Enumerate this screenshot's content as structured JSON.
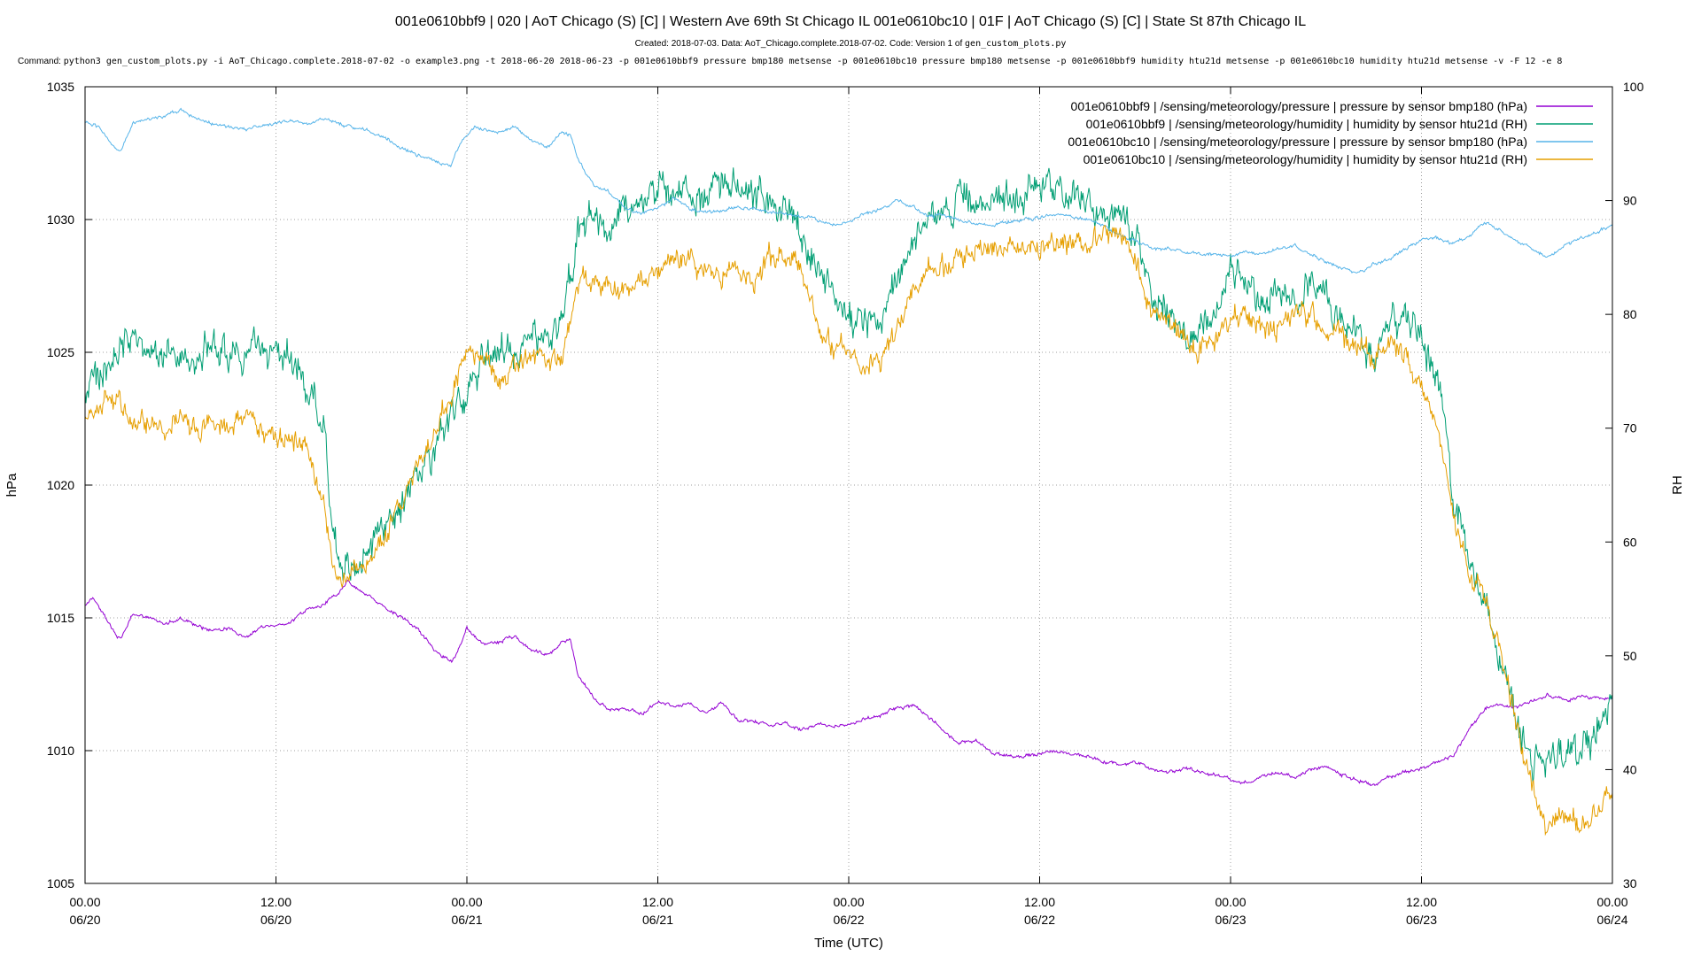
{
  "header": {
    "title": "001e0610bbf9 | 020 | AoT Chicago (S) [C] | Western Ave 69th St Chicago IL 001e0610bc10 | 01F | AoT Chicago (S) [C] | State St 87th Chicago IL",
    "subtitle_prefix": "Created: 2018-07-03. Data: AoT_Chicago.complete.2018-07-02. Code: Version 1 of",
    "subtitle_code": "gen_custom_plots.py",
    "command_label": "Command:",
    "command_text": "python3 gen_custom_plots.py -i AoT_Chicago.complete.2018-07-02 -o example3.png -t 2018-06-20 2018-06-23 -p 001e0610bbf9 pressure bmp180 metsense -p 001e0610bc10 pressure bmp180 metsense -p 001e0610bbf9 humidity htu21d metsense -p 001e0610bc10 humidity htu21d metsense -v -F 12 -e 8"
  },
  "chart_data": {
    "type": "line",
    "xlabel": "Time (UTC)",
    "ylabel": "hPa",
    "y2label": "RH",
    "x_unit": "hours since 06/20 00:00",
    "x_range": [
      0,
      96
    ],
    "x_ticks": [
      {
        "x": 0,
        "time": "00.00",
        "date": "06/20"
      },
      {
        "x": 12,
        "time": "12.00",
        "date": "06/20"
      },
      {
        "x": 24,
        "time": "00.00",
        "date": "06/21"
      },
      {
        "x": 36,
        "time": "12.00",
        "date": "06/21"
      },
      {
        "x": 48,
        "time": "00.00",
        "date": "06/22"
      },
      {
        "x": 60,
        "time": "12.00",
        "date": "06/22"
      },
      {
        "x": 72,
        "time": "00.00",
        "date": "06/23"
      },
      {
        "x": 84,
        "time": "12.00",
        "date": "06/23"
      },
      {
        "x": 96,
        "time": "00.00",
        "date": "06/24"
      }
    ],
    "ylim": [
      1005,
      1035
    ],
    "yticks": [
      "1005",
      "1010",
      "1015",
      "1020",
      "1025",
      "1030",
      "1035"
    ],
    "y2lim": [
      30,
      100
    ],
    "y2ticks": [
      "30",
      "40",
      "50",
      "60",
      "70",
      "80",
      "90",
      "100"
    ],
    "grid": true,
    "legend_position": "top-right",
    "series": [
      {
        "name": "001e0610bbf9 | /sensing/meteorology/pressure | pressure by sensor bmp180 (hPa)",
        "color": "#9400d3",
        "axis": "left",
        "noise": 0.08,
        "x": [
          0,
          0.5,
          1,
          2,
          2.2,
          3,
          4,
          5,
          6,
          7,
          8,
          9,
          10,
          11,
          12,
          13,
          14,
          15,
          16,
          16.5,
          17,
          18,
          19,
          20,
          21,
          22,
          23,
          23.5,
          24,
          24.5,
          25,
          26,
          27,
          28,
          29,
          30,
          30.5,
          31,
          32,
          33,
          34,
          35,
          36,
          37,
          38,
          39,
          40,
          41,
          42,
          43,
          44,
          45,
          46,
          47,
          48,
          49,
          50,
          51,
          52,
          53,
          54,
          55,
          56,
          57,
          58,
          59,
          60,
          61,
          62,
          63,
          64,
          65,
          66,
          67,
          68,
          69,
          70,
          71,
          72,
          73,
          74,
          75,
          76,
          77,
          78,
          79,
          80,
          81,
          82,
          83,
          84,
          85,
          86,
          87,
          88,
          89,
          90,
          91,
          92,
          93,
          94,
          95,
          96
        ],
        "y": [
          1015.5,
          1015.8,
          1015.3,
          1014.3,
          1014.2,
          1015.1,
          1015,
          1014.8,
          1015,
          1014.7,
          1014.5,
          1014.6,
          1014.2,
          1014.6,
          1014.7,
          1014.9,
          1015.3,
          1015.5,
          1016,
          1016.4,
          1016.1,
          1015.8,
          1015.3,
          1015,
          1014.5,
          1013.8,
          1013.3,
          1013.8,
          1014.6,
          1014.3,
          1014,
          1014.1,
          1014.3,
          1013.8,
          1013.6,
          1014.1,
          1014.2,
          1012.8,
          1012,
          1011.5,
          1011.6,
          1011.4,
          1011.8,
          1011.7,
          1011.8,
          1011.4,
          1011.8,
          1011.2,
          1011.1,
          1011,
          1011,
          1010.8,
          1011,
          1010.9,
          1011,
          1011.2,
          1011.3,
          1011.6,
          1011.7,
          1011.3,
          1010.7,
          1010.3,
          1010.4,
          1009.9,
          1009.8,
          1009.8,
          1009.9,
          1010,
          1009.9,
          1009.8,
          1009.6,
          1009.5,
          1009.6,
          1009.3,
          1009.2,
          1009.3,
          1009.2,
          1009.1,
          1008.9,
          1008.8,
          1009,
          1009.2,
          1009,
          1009.3,
          1009.4,
          1009.1,
          1008.9,
          1008.7,
          1009,
          1009.2,
          1009.3,
          1009.6,
          1009.8,
          1010.8,
          1011.6,
          1011.7,
          1011.6,
          1011.9,
          1012.1,
          1011.9,
          1012,
          1012,
          1012
        ]
      },
      {
        "name": "001e0610bbf9 | /sensing/meteorology/humidity | humidity by sensor htu21d (RH)",
        "color": "#009e73",
        "axis": "right",
        "noise": 1.8,
        "x": [
          0,
          1,
          2,
          3,
          4,
          5,
          6,
          7,
          8,
          9,
          10,
          11,
          12,
          13,
          14,
          15,
          15.5,
          16,
          17,
          18,
          19,
          20,
          21,
          22,
          23,
          24,
          25,
          26,
          27,
          28,
          29,
          30,
          31,
          32,
          33,
          34,
          35,
          36,
          37,
          38,
          39,
          40,
          41,
          42,
          43,
          44,
          45,
          46,
          47,
          48,
          49,
          50,
          51,
          52,
          53,
          54,
          55,
          56,
          57,
          58,
          59,
          60,
          61,
          62,
          63,
          64,
          65,
          66,
          67,
          68,
          69,
          70,
          71,
          72,
          73,
          74,
          75,
          76,
          77,
          78,
          79,
          80,
          81,
          82,
          83,
          84,
          85,
          86,
          87,
          88,
          89,
          90,
          91,
          92,
          93,
          94,
          95,
          96
        ],
        "y": [
          73,
          75,
          77,
          78,
          77,
          77,
          76,
          77,
          77,
          76,
          76,
          77,
          77,
          76,
          74,
          70,
          63,
          58,
          58,
          60,
          62,
          64,
          66,
          68,
          71,
          73,
          76,
          77,
          77,
          78,
          78,
          79,
          88,
          89,
          87,
          89,
          90,
          91,
          91,
          91,
          90,
          92,
          91,
          90,
          90,
          89,
          87,
          84,
          81,
          80,
          79,
          80,
          82,
          86,
          89,
          89,
          90,
          90,
          90,
          90,
          91,
          91,
          91,
          90,
          90,
          89,
          89,
          87,
          82,
          80,
          79,
          78,
          80,
          84,
          82,
          80,
          82,
          82,
          82,
          82,
          80,
          78,
          76,
          79,
          80,
          78,
          74,
          64,
          58,
          54,
          50,
          45,
          40,
          41,
          42,
          41,
          43,
          47
        ]
      },
      {
        "name": "001e0610bc10 | /sensing/meteorology/pressure | pressure by sensor bmp180 (hPa)",
        "color": "#56b4e9",
        "axis": "left",
        "noise": 0.08,
        "x": [
          0,
          1,
          2,
          2.2,
          3,
          4,
          5,
          6,
          7,
          8,
          9,
          10,
          11,
          12,
          13,
          14,
          15,
          16,
          17,
          18,
          19,
          20,
          21,
          22,
          23,
          23.5,
          24,
          24.5,
          25,
          26,
          27,
          28,
          29,
          30,
          30.5,
          31,
          32,
          33,
          34,
          35,
          36,
          37,
          38,
          39,
          40,
          41,
          42,
          43,
          44,
          45,
          46,
          47,
          48,
          49,
          50,
          51,
          52,
          53,
          54,
          55,
          56,
          57,
          58,
          59,
          60,
          61,
          62,
          63,
          64,
          65,
          66,
          67,
          68,
          69,
          70,
          71,
          72,
          73,
          74,
          75,
          76,
          77,
          78,
          79,
          80,
          81,
          82,
          83,
          84,
          85,
          86,
          87,
          88,
          89,
          90,
          91,
          92,
          93,
          94,
          95,
          96
        ],
        "y": [
          1033.7,
          1033.4,
          1032.6,
          1032.5,
          1033.6,
          1033.8,
          1033.9,
          1034.1,
          1033.8,
          1033.6,
          1033.5,
          1033.4,
          1033.5,
          1033.6,
          1033.7,
          1033.6,
          1033.8,
          1033.6,
          1033.4,
          1033.3,
          1033,
          1032.7,
          1032.4,
          1032.2,
          1032,
          1032.8,
          1033.2,
          1033.5,
          1033.4,
          1033.3,
          1033.5,
          1033,
          1032.7,
          1033.3,
          1033.2,
          1032.2,
          1031.3,
          1031,
          1030.4,
          1030.2,
          1030.5,
          1030.8,
          1030.4,
          1030.3,
          1030.3,
          1030.5,
          1030.4,
          1030.3,
          1030.2,
          1030.1,
          1030,
          1029.8,
          1029.9,
          1030.2,
          1030.4,
          1030.7,
          1030.5,
          1030.1,
          1030.2,
          1030,
          1029.8,
          1029.8,
          1029.9,
          1030,
          1030.1,
          1030.2,
          1030.1,
          1030,
          1029.8,
          1029.4,
          1029.2,
          1028.9,
          1028.9,
          1028.8,
          1028.7,
          1028.7,
          1028.6,
          1028.8,
          1028.7,
          1028.9,
          1029,
          1028.7,
          1028.4,
          1028.2,
          1028,
          1028.3,
          1028.5,
          1028.9,
          1029.2,
          1029.3,
          1029.1,
          1029.4,
          1029.9,
          1029.6,
          1029.2,
          1028.9,
          1028.6,
          1029,
          1029.3,
          1029.5,
          1029.8
        ]
      },
      {
        "name": "001e0610bc10 | /sensing/meteorology/humidity | humidity by sensor htu21d (RH)",
        "color": "#e69f00",
        "axis": "right",
        "noise": 1.2,
        "x": [
          0,
          1,
          2,
          3,
          4,
          5,
          6,
          7,
          8,
          9,
          10,
          11,
          12,
          13,
          14,
          15,
          15.5,
          16,
          17,
          18,
          19,
          20,
          21,
          22,
          23,
          24,
          25,
          26,
          27,
          28,
          29,
          30,
          31,
          32,
          33,
          34,
          35,
          36,
          37,
          38,
          39,
          40,
          41,
          42,
          43,
          44,
          45,
          46,
          47,
          48,
          49,
          50,
          51,
          52,
          53,
          54,
          55,
          56,
          57,
          58,
          59,
          60,
          61,
          62,
          63,
          64,
          65,
          66,
          67,
          68,
          69,
          70,
          71,
          72,
          73,
          74,
          75,
          76,
          77,
          78,
          79,
          80,
          81,
          82,
          83,
          84,
          85,
          86,
          87,
          88,
          89,
          90,
          91,
          92,
          93,
          94,
          95,
          96
        ],
        "y": [
          71,
          72,
          72,
          70,
          71,
          70,
          71,
          70,
          71,
          70,
          71,
          70,
          69,
          69,
          68,
          64,
          58,
          56,
          57,
          59,
          61,
          64,
          67,
          70,
          73,
          77,
          76,
          75,
          75,
          76,
          76,
          77,
          83,
          83,
          82,
          82,
          83,
          83,
          85,
          85,
          84,
          84,
          84,
          83,
          85,
          85,
          84,
          79,
          77,
          77,
          76,
          76,
          78,
          82,
          84,
          84,
          85,
          86,
          86,
          86,
          86,
          86,
          86,
          86,
          86,
          87,
          87,
          85,
          80,
          79,
          78,
          77,
          78,
          80,
          80,
          79,
          79,
          80,
          80,
          79,
          78,
          77,
          76,
          78,
          76,
          74,
          70,
          62,
          57,
          55,
          50,
          44,
          38,
          35,
          36,
          35,
          36,
          38
        ]
      }
    ]
  }
}
